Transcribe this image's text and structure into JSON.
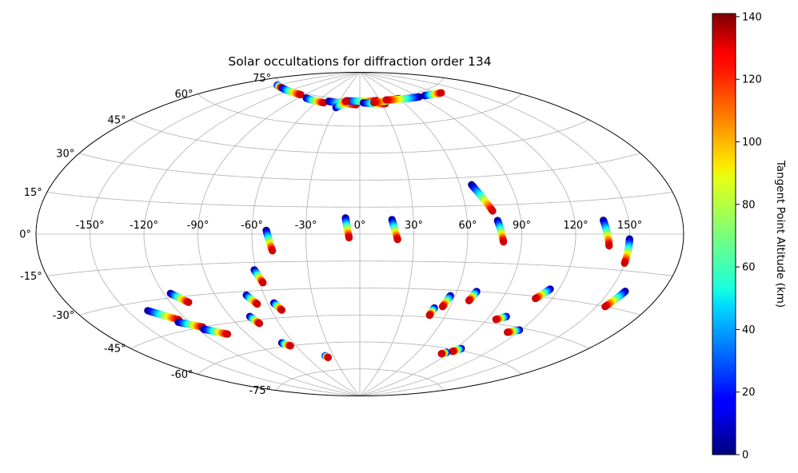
{
  "chart_data": {
    "type": "scatter",
    "projection": "aitoff",
    "title": "Solar occultations for diffraction order 134",
    "grid": true,
    "longitude_ticks": [
      -150,
      -120,
      -90,
      -60,
      -30,
      0,
      30,
      60,
      90,
      120,
      150
    ],
    "longitude_tick_labels": [
      "-150°",
      "-120°",
      "-90°",
      "-60°",
      "-30°",
      "0°",
      "30°",
      "60°",
      "90°",
      "120°",
      "150°"
    ],
    "latitude_ticks": [
      -75,
      -60,
      -45,
      -30,
      -15,
      0,
      15,
      30,
      45,
      60,
      75
    ],
    "latitude_tick_labels": [
      "-75°",
      "-60°",
      "-45°",
      "-30°",
      "-15°",
      "0°",
      "15°",
      "30°",
      "45°",
      "60°",
      "75°"
    ],
    "colorbar": {
      "label": "Tangent Point Altitude (km)",
      "colormap": "jet",
      "range": [
        0,
        141
      ],
      "ticks": [
        0,
        20,
        40,
        60,
        80,
        100,
        120,
        140
      ],
      "tick_labels": [
        "0",
        "20",
        "40",
        "60",
        "80",
        "100",
        "120",
        "140"
      ]
    },
    "tracks": [
      {
        "lon_start": -8,
        "lat_start": 9,
        "lon_end": -6,
        "lat_end": -2
      },
      {
        "lon_start": 18,
        "lat_start": 8,
        "lon_end": 21,
        "lat_end": -3
      },
      {
        "lon_start": -52,
        "lat_start": 2,
        "lon_end": -49,
        "lat_end": -9
      },
      {
        "lon_start": 67,
        "lat_start": 26,
        "lon_end": 75,
        "lat_end": 12
      },
      {
        "lon_start": 77,
        "lat_start": 7,
        "lon_end": 80,
        "lat_end": -4
      },
      {
        "lon_start": 136,
        "lat_start": 6,
        "lon_end": 139,
        "lat_end": -5
      },
      {
        "lon_start": 150,
        "lat_start": -2,
        "lon_end": 150,
        "lat_end": -12
      },
      {
        "lon_start": 159,
        "lat_start": -23,
        "lon_end": 155,
        "lat_end": -30
      },
      {
        "lon_start": -61,
        "lat_start": -19,
        "lon_end": -58,
        "lat_end": -26
      },
      {
        "lon_start": -71,
        "lat_start": -32,
        "lon_end": -67,
        "lat_end": -37
      },
      {
        "lon_start": -56,
        "lat_start": -37,
        "lon_end": -53,
        "lat_end": -41
      },
      {
        "lon_start": -77,
        "lat_start": -43,
        "lon_end": -74,
        "lat_end": -47
      },
      {
        "lon_start": -116,
        "lat_start": -28,
        "lon_end": -109,
        "lat_end": -33
      },
      {
        "lon_start": -138,
        "lat_start": -34,
        "lon_end": -125,
        "lat_end": -40
      },
      {
        "lon_start": -127,
        "lat_start": -41,
        "lon_end": -115,
        "lat_end": -45
      },
      {
        "lon_start": -116,
        "lat_start": -46,
        "lon_end": -104,
        "lat_end": -50
      },
      {
        "lon_start": -70,
        "lat_start": -58,
        "lon_end": -65,
        "lat_end": -60
      },
      {
        "lon_start": -39,
        "lat_start": -67,
        "lon_end": -37,
        "lat_end": -68
      },
      {
        "lon_start": 57,
        "lat_start": -33,
        "lon_end": 55,
        "lat_end": -39
      },
      {
        "lon_start": 50,
        "lat_start": -40,
        "lon_end": 49,
        "lat_end": -44
      },
      {
        "lon_start": 72,
        "lat_start": -30,
        "lon_end": 70,
        "lat_end": -35
      },
      {
        "lon_start": 115,
        "lat_start": -26,
        "lon_end": 110,
        "lat_end": -31
      },
      {
        "lon_start": 101,
        "lat_start": -41,
        "lon_end": 96,
        "lat_end": -43
      },
      {
        "lon_start": 119,
        "lat_start": -46,
        "lon_end": 113,
        "lat_end": -48
      },
      {
        "lon_start": 95,
        "lat_start": -59,
        "lon_end": 91,
        "lat_end": -61
      },
      {
        "lon_start": 87,
        "lat_start": -62,
        "lon_end": 84,
        "lat_end": -63
      },
      {
        "lon_start": -150,
        "lat_start": 74,
        "lon_end": -138,
        "lat_end": 74
      },
      {
        "lon_start": -135,
        "lat_start": 74,
        "lon_end": -95,
        "lat_end": 74
      },
      {
        "lon_start": -80,
        "lat_start": 73,
        "lon_end": -50,
        "lat_end": 72
      },
      {
        "lon_start": -45,
        "lat_start": 73,
        "lon_end": -5,
        "lat_end": 72
      },
      {
        "lon_start": -20,
        "lat_start": 74,
        "lon_end": 25,
        "lat_end": 74
      },
      {
        "lon_start": 5,
        "lat_start": 73,
        "lon_end": 35,
        "lat_end": 72
      },
      {
        "lon_start": 60,
        "lat_start": 74,
        "lon_end": 20,
        "lat_end": 73
      },
      {
        "lon_start": 90,
        "lat_start": 73,
        "lon_end": 40,
        "lat_end": 74
      },
      {
        "lon_start": 100,
        "lat_start": 73,
        "lon_end": 125,
        "lat_end": 72
      },
      {
        "lon_start": -30,
        "lat_start": 70,
        "lon_end": -20,
        "lat_end": 74
      }
    ]
  }
}
